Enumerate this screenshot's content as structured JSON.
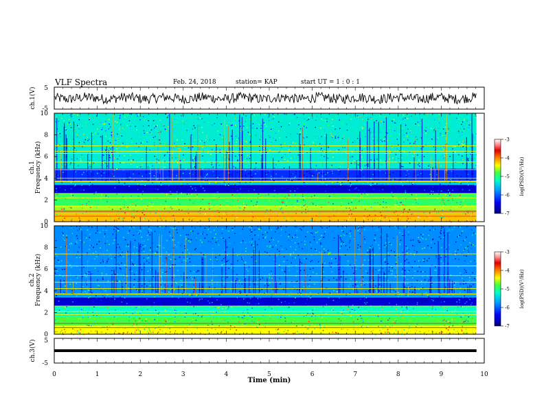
{
  "header": {
    "title": "VLF Spectra",
    "date": "Feb. 24, 2018",
    "station": "station= KAP",
    "start_ut": "start  UT =   1 : 0  : 1"
  },
  "colors": {
    "colormap": [
      "#00007a",
      "#0000ff",
      "#00a0ff",
      "#00ffc8",
      "#40ff40",
      "#ffff00",
      "#ff8000",
      "#e00000",
      "#ff9090",
      "#ffffff"
    ],
    "waveform": "#000000",
    "axes": "#000000"
  },
  "chart_data": [
    {
      "type": "line",
      "panel": "ch1",
      "ylabel": "ch.1(V)",
      "ylim": [
        -5,
        5
      ],
      "yticks": [
        "5",
        "-5"
      ],
      "xlim": [
        0,
        10
      ],
      "data_extent_x": [
        0,
        9.82
      ],
      "signal_level_v": [
        -2.5,
        2.5
      ],
      "description_values": "noisy waveform centered near 0 V"
    },
    {
      "type": "heatmap",
      "panel": "ch1-spectrogram",
      "ylabel": "ch.1\nFrequency (kHz)",
      "ylim": [
        0,
        10
      ],
      "yticks": [
        "0",
        "2",
        "4",
        "6",
        "8",
        "10"
      ],
      "xlim": [
        0,
        10
      ],
      "data_extent_x": [
        0,
        9.82
      ],
      "colorbar": {
        "label": "log(PSD)(V²/Hz)",
        "range": [
          -7,
          -3
        ],
        "ticks": [
          "-3",
          "-4",
          "-5",
          "-6",
          "-7"
        ]
      },
      "bands_khz": [
        {
          "from": 0,
          "to": 0.8,
          "level": -4.2
        },
        {
          "from": 0.8,
          "to": 1.5,
          "level": -4.6
        },
        {
          "from": 1.5,
          "to": 2.6,
          "level": -4.9
        },
        {
          "from": 2.6,
          "to": 3.4,
          "level": -6.6
        },
        {
          "from": 3.4,
          "to": 3.8,
          "level": -5.5
        },
        {
          "from": 3.8,
          "to": 4.9,
          "level": -6.2
        },
        {
          "from": 4.9,
          "to": 10,
          "level": -5.3
        }
      ],
      "lines_khz": [
        0.5,
        0.9,
        1.0,
        1.4,
        2.2,
        2.6,
        3.7,
        4.0,
        4.8,
        5.5,
        6.3,
        6.5,
        7.0
      ]
    },
    {
      "type": "heatmap",
      "panel": "ch2-spectrogram",
      "ylabel": "ch.2\nFrequency (kHz)",
      "ylim": [
        0,
        10
      ],
      "yticks": [
        "0",
        "2",
        "4",
        "6",
        "8",
        "10"
      ],
      "xlim": [
        0,
        10
      ],
      "data_extent_x": [
        0,
        9.82
      ],
      "colorbar": {
        "label": "log(PSD)(V²/Hz)",
        "range": [
          -7,
          -3
        ],
        "ticks": [
          "-3",
          "-4",
          "-5",
          "-6",
          "-7"
        ]
      },
      "bands_khz": [
        {
          "from": 0,
          "to": 0.8,
          "level": -4.4
        },
        {
          "from": 0.8,
          "to": 1.6,
          "level": -4.8
        },
        {
          "from": 1.6,
          "to": 2.6,
          "level": -5.2
        },
        {
          "from": 2.6,
          "to": 3.4,
          "level": -6.6
        },
        {
          "from": 3.4,
          "to": 3.8,
          "level": -5.7
        },
        {
          "from": 3.8,
          "to": 10,
          "level": -5.8
        }
      ],
      "lines_khz": [
        0.6,
        1.0,
        1.8,
        2.1,
        2.6,
        3.7,
        4.2,
        4.8,
        5.4,
        6.3,
        7.4
      ]
    },
    {
      "type": "line",
      "panel": "ch3",
      "ylabel": "ch.3(V)",
      "ylim": [
        -5,
        5
      ],
      "yticks": [
        "5",
        "-5"
      ],
      "xlim": [
        0,
        10
      ],
      "data_extent_x": [
        0,
        9.82
      ],
      "constant_value_v": 0,
      "xlabel": "Time  (min)",
      "xticks": [
        "0",
        "1",
        "2",
        "3",
        "4",
        "5",
        "6",
        "7",
        "8",
        "9",
        "10"
      ]
    }
  ]
}
